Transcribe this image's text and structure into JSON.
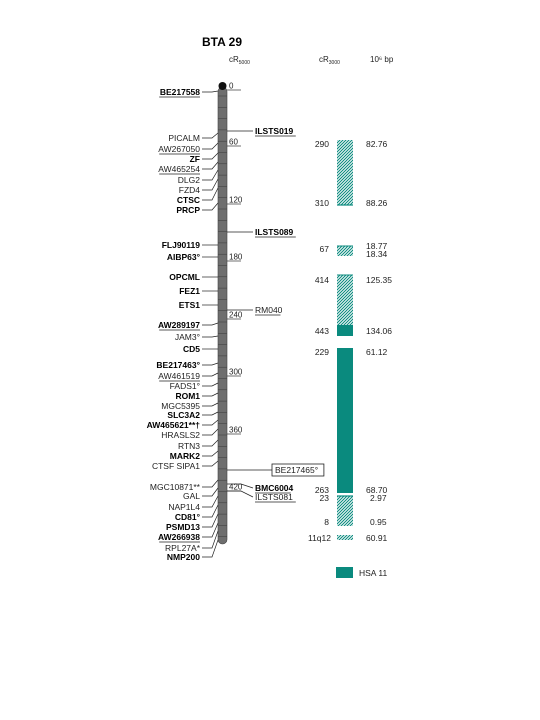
{
  "title": "BTA 29",
  "columns": {
    "cr5000": "cR",
    "cr5000_sub": "5000",
    "cr3000": "cR",
    "cr3000_sub": "3000",
    "bp": "10⁶ bp"
  },
  "colors": {
    "teal": "#0a8a7e",
    "chromosome": "#6e6e6e"
  },
  "scale_labels": [
    "0",
    "60",
    "120",
    "180",
    "240",
    "300",
    "360",
    "420"
  ],
  "left_markers": [
    {
      "label": "BE217558",
      "bold": true,
      "underline": true
    },
    {
      "label": "PICALM",
      "bold": false,
      "underline": false
    },
    {
      "label": "AW267050",
      "bold": false,
      "underline": true
    },
    {
      "label": "ZF",
      "bold": true,
      "underline": false
    },
    {
      "label": "AW465254",
      "bold": false,
      "underline": true
    },
    {
      "label": "DLG2",
      "bold": false,
      "underline": false
    },
    {
      "label": "FZD4",
      "bold": false,
      "underline": false
    },
    {
      "label": "CTSC",
      "bold": true,
      "underline": false
    },
    {
      "label": "PRCP",
      "bold": true,
      "underline": false
    },
    {
      "label": "FLJ90119",
      "bold": true,
      "underline": false
    },
    {
      "label": "AIBP63°",
      "bold": true,
      "underline": false
    },
    {
      "label": "OPCML",
      "bold": true,
      "underline": false
    },
    {
      "label": "FEZ1",
      "bold": true,
      "underline": false
    },
    {
      "label": "ETS1",
      "bold": true,
      "underline": false
    },
    {
      "label": "AW289197",
      "bold": true,
      "underline": true
    },
    {
      "label": "JAM3°",
      "bold": false,
      "underline": false
    },
    {
      "label": "CD5",
      "bold": true,
      "underline": false
    },
    {
      "label": "BE217463°",
      "bold": true,
      "underline": false
    },
    {
      "label": "AW461519",
      "bold": false,
      "underline": true
    },
    {
      "label": "FADS1°",
      "bold": false,
      "underline": false
    },
    {
      "label": "ROM1",
      "bold": true,
      "underline": false
    },
    {
      "label": "MGC5395",
      "bold": false,
      "underline": false
    },
    {
      "label": "SLC3A2",
      "bold": true,
      "underline": false
    },
    {
      "label": "AW465621**†",
      "bold": true,
      "underline": false
    },
    {
      "label": "HRASLS2",
      "bold": false,
      "underline": false
    },
    {
      "label": "RTN3",
      "bold": false,
      "underline": false
    },
    {
      "label": "MARK2",
      "bold": true,
      "underline": false
    },
    {
      "label": "CTSF SIPA1",
      "bold": false,
      "underline": false
    },
    {
      "label": "MGC10871**",
      "bold": false,
      "underline": false
    },
    {
      "label": "GAL",
      "bold": false,
      "underline": false
    },
    {
      "label": "NAP1L4",
      "bold": false,
      "underline": false
    },
    {
      "label": "CD81°",
      "bold": true,
      "underline": false
    },
    {
      "label": "PSMD13",
      "bold": true,
      "underline": false
    },
    {
      "label": "AW266938",
      "bold": true,
      "underline": true
    },
    {
      "label": "RPL27A*",
      "bold": false,
      "underline": false
    },
    {
      "label": "NMP200",
      "bold": true,
      "underline": false
    }
  ],
  "right_markers": [
    {
      "label": "ILSTS019",
      "bold": true,
      "underline": true
    },
    {
      "label": "ILSTS089",
      "bold": true,
      "underline": true
    },
    {
      "label": "RM040",
      "bold": false,
      "underline": true
    },
    {
      "label": "BE217465°",
      "bold": false,
      "underline": false,
      "boxed": true
    },
    {
      "label": "BMC6004",
      "bold": true,
      "underline": true
    },
    {
      "label": "ILSTS081",
      "bold": false,
      "underline": true
    }
  ],
  "segments": [
    {
      "cr3000_start": "290",
      "bp_start": "82.76",
      "cr3000_end": "310",
      "bp_end": "88.26"
    },
    {
      "cr3000_start": "67",
      "bp_start": "18.77",
      "cr3000_end": "",
      "bp_end": "18.34"
    },
    {
      "cr3000_start": "414",
      "bp_start": "125.35",
      "cr3000_end": "443",
      "bp_end": "134.06"
    },
    {
      "cr3000_start": "229",
      "bp_start": "61.12",
      "cr3000_end": "263",
      "bp_end": "68.70"
    },
    {
      "cr3000_start": "23",
      "bp_start": "2.97",
      "cr3000_end": "8",
      "bp_end": "0.95"
    },
    {
      "cr3000_start": "11q12",
      "bp_start": "60.91",
      "cr3000_end": "",
      "bp_end": ""
    }
  ],
  "legend": {
    "label": "HSA 11"
  }
}
